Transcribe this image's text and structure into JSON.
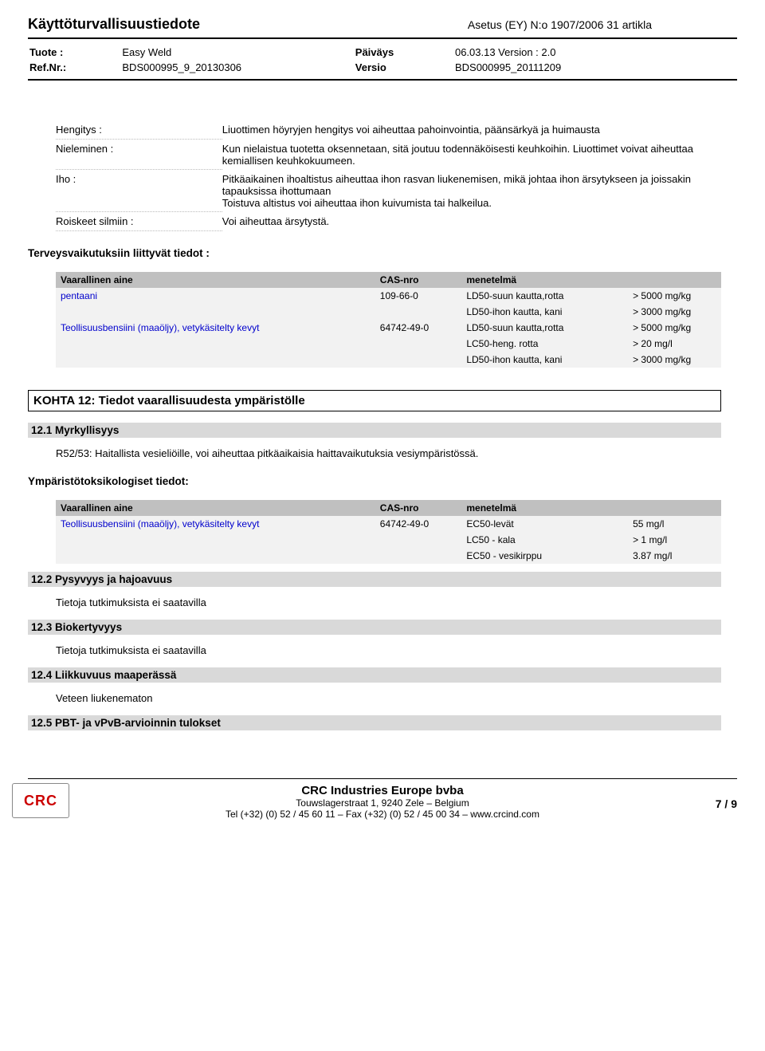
{
  "header": {
    "doc_type": "Käyttöturvallisuustiedote",
    "regulation": "Asetus (EY) N:o 1907/2006 31 artikla",
    "product_lbl": "Tuote :",
    "product": "Easy Weld",
    "date_lbl": "Päiväys",
    "date": "06.03.13 Version : 2.0",
    "ref_lbl": "Ref.Nr.:",
    "ref": "BDS000995_9_20130306",
    "version_lbl": "Versio",
    "version": "BDS000995_20111209"
  },
  "defs": {
    "hengitys_lbl": "Hengitys :",
    "hengitys_val": "Liuottimen höyryjen hengitys voi aiheuttaa pahoinvointia, päänsärkyä ja huimausta",
    "nieleminen_lbl": "Nieleminen :",
    "nieleminen_val": "Kun nielaistua tuotetta oksennetaan, sitä joutuu todennäköisesti keuhkoihin. Liuottimet voivat aiheuttaa kemiallisen keuhkokuumeen.",
    "iho_lbl": "Iho :",
    "iho_val": "Pitkäaikainen ihoaltistus aiheuttaa ihon rasvan liukenemisen, mikä johtaa ihon ärsytykseen ja joissakin tapauksissa ihottumaan\nToistuva altistus voi aiheuttaa ihon kuivumista tai halkeilua.",
    "roiskeet_lbl": "Roiskeet silmiin :",
    "roiskeet_val": "Voi aiheuttaa ärsytystä."
  },
  "terv_title": "Terveysvaikutuksiin liittyvät tiedot :",
  "table1": {
    "hdr_a": "Vaarallinen aine",
    "hdr_b": "CAS-nro",
    "hdr_c": "menetelmä",
    "rows": [
      {
        "a": "pentaani",
        "b": "109-66-0",
        "c": "LD50-suun kautta,rotta",
        "d": "> 5000 mg/kg"
      },
      {
        "a": "",
        "b": "",
        "c": "LD50-ihon kautta, kani",
        "d": "> 3000 mg/kg"
      },
      {
        "a": "Teollisuusbensiini (maaöljy), vetykäsitelty kevyt",
        "b": "64742-49-0",
        "c": "LD50-suun kautta,rotta",
        "d": "> 5000 mg/kg"
      },
      {
        "a": "",
        "b": "",
        "c": "LC50-heng. rotta",
        "d": "> 20 mg/l"
      },
      {
        "a": "",
        "b": "",
        "c": "LD50-ihon kautta, kani",
        "d": "> 3000 mg/kg"
      }
    ]
  },
  "kohta12": "KOHTA 12: Tiedot vaarallisuudesta ympäristölle",
  "s12_1": "12.1 Myrkyllisyys",
  "s12_1_line": "R52/53: Haitallista vesieliöille, voi aiheuttaa pitkäaikaisia haittavaikutuksia vesiympäristössä.",
  "ymp_title": "Ympäristötoksikologiset tiedot:",
  "table2": {
    "hdr_a": "Vaarallinen aine",
    "hdr_b": "CAS-nro",
    "hdr_c": "menetelmä",
    "rows": [
      {
        "a": "Teollisuusbensiini (maaöljy), vetykäsitelty kevyt",
        "b": "64742-49-0",
        "c": "EC50-levät",
        "d": "55 mg/l"
      },
      {
        "a": "",
        "b": "",
        "c": "LC50 - kala",
        "d": "> 1 mg/l"
      },
      {
        "a": "",
        "b": "",
        "c": "EC50 - vesikirppu",
        "d": "3.87 mg/l"
      }
    ]
  },
  "s12_2": "12.2 Pysyvyys ja hajoavuus",
  "s12_2_line": "Tietoja tutkimuksista ei saatavilla",
  "s12_3": "12.3 Biokertyvyys",
  "s12_3_line": "Tietoja tutkimuksista ei saatavilla",
  "s12_4": "12.4 Liikkuvuus maaperässä",
  "s12_4_line": "Veteen liukenematon",
  "s12_5": "12.5 PBT- ja vPvB-arvioinnin tulokset",
  "footer": {
    "company": "CRC Industries Europe bvba",
    "addr": "Touwslagerstraat 1,  9240 Zele – Belgium",
    "tel": "Tel (+32) (0) 52 / 45 60 11 – Fax (+32) (0) 52 / 45 00 34 –  www.crcind.com",
    "page": "7 / 9",
    "logo": "CRC"
  }
}
